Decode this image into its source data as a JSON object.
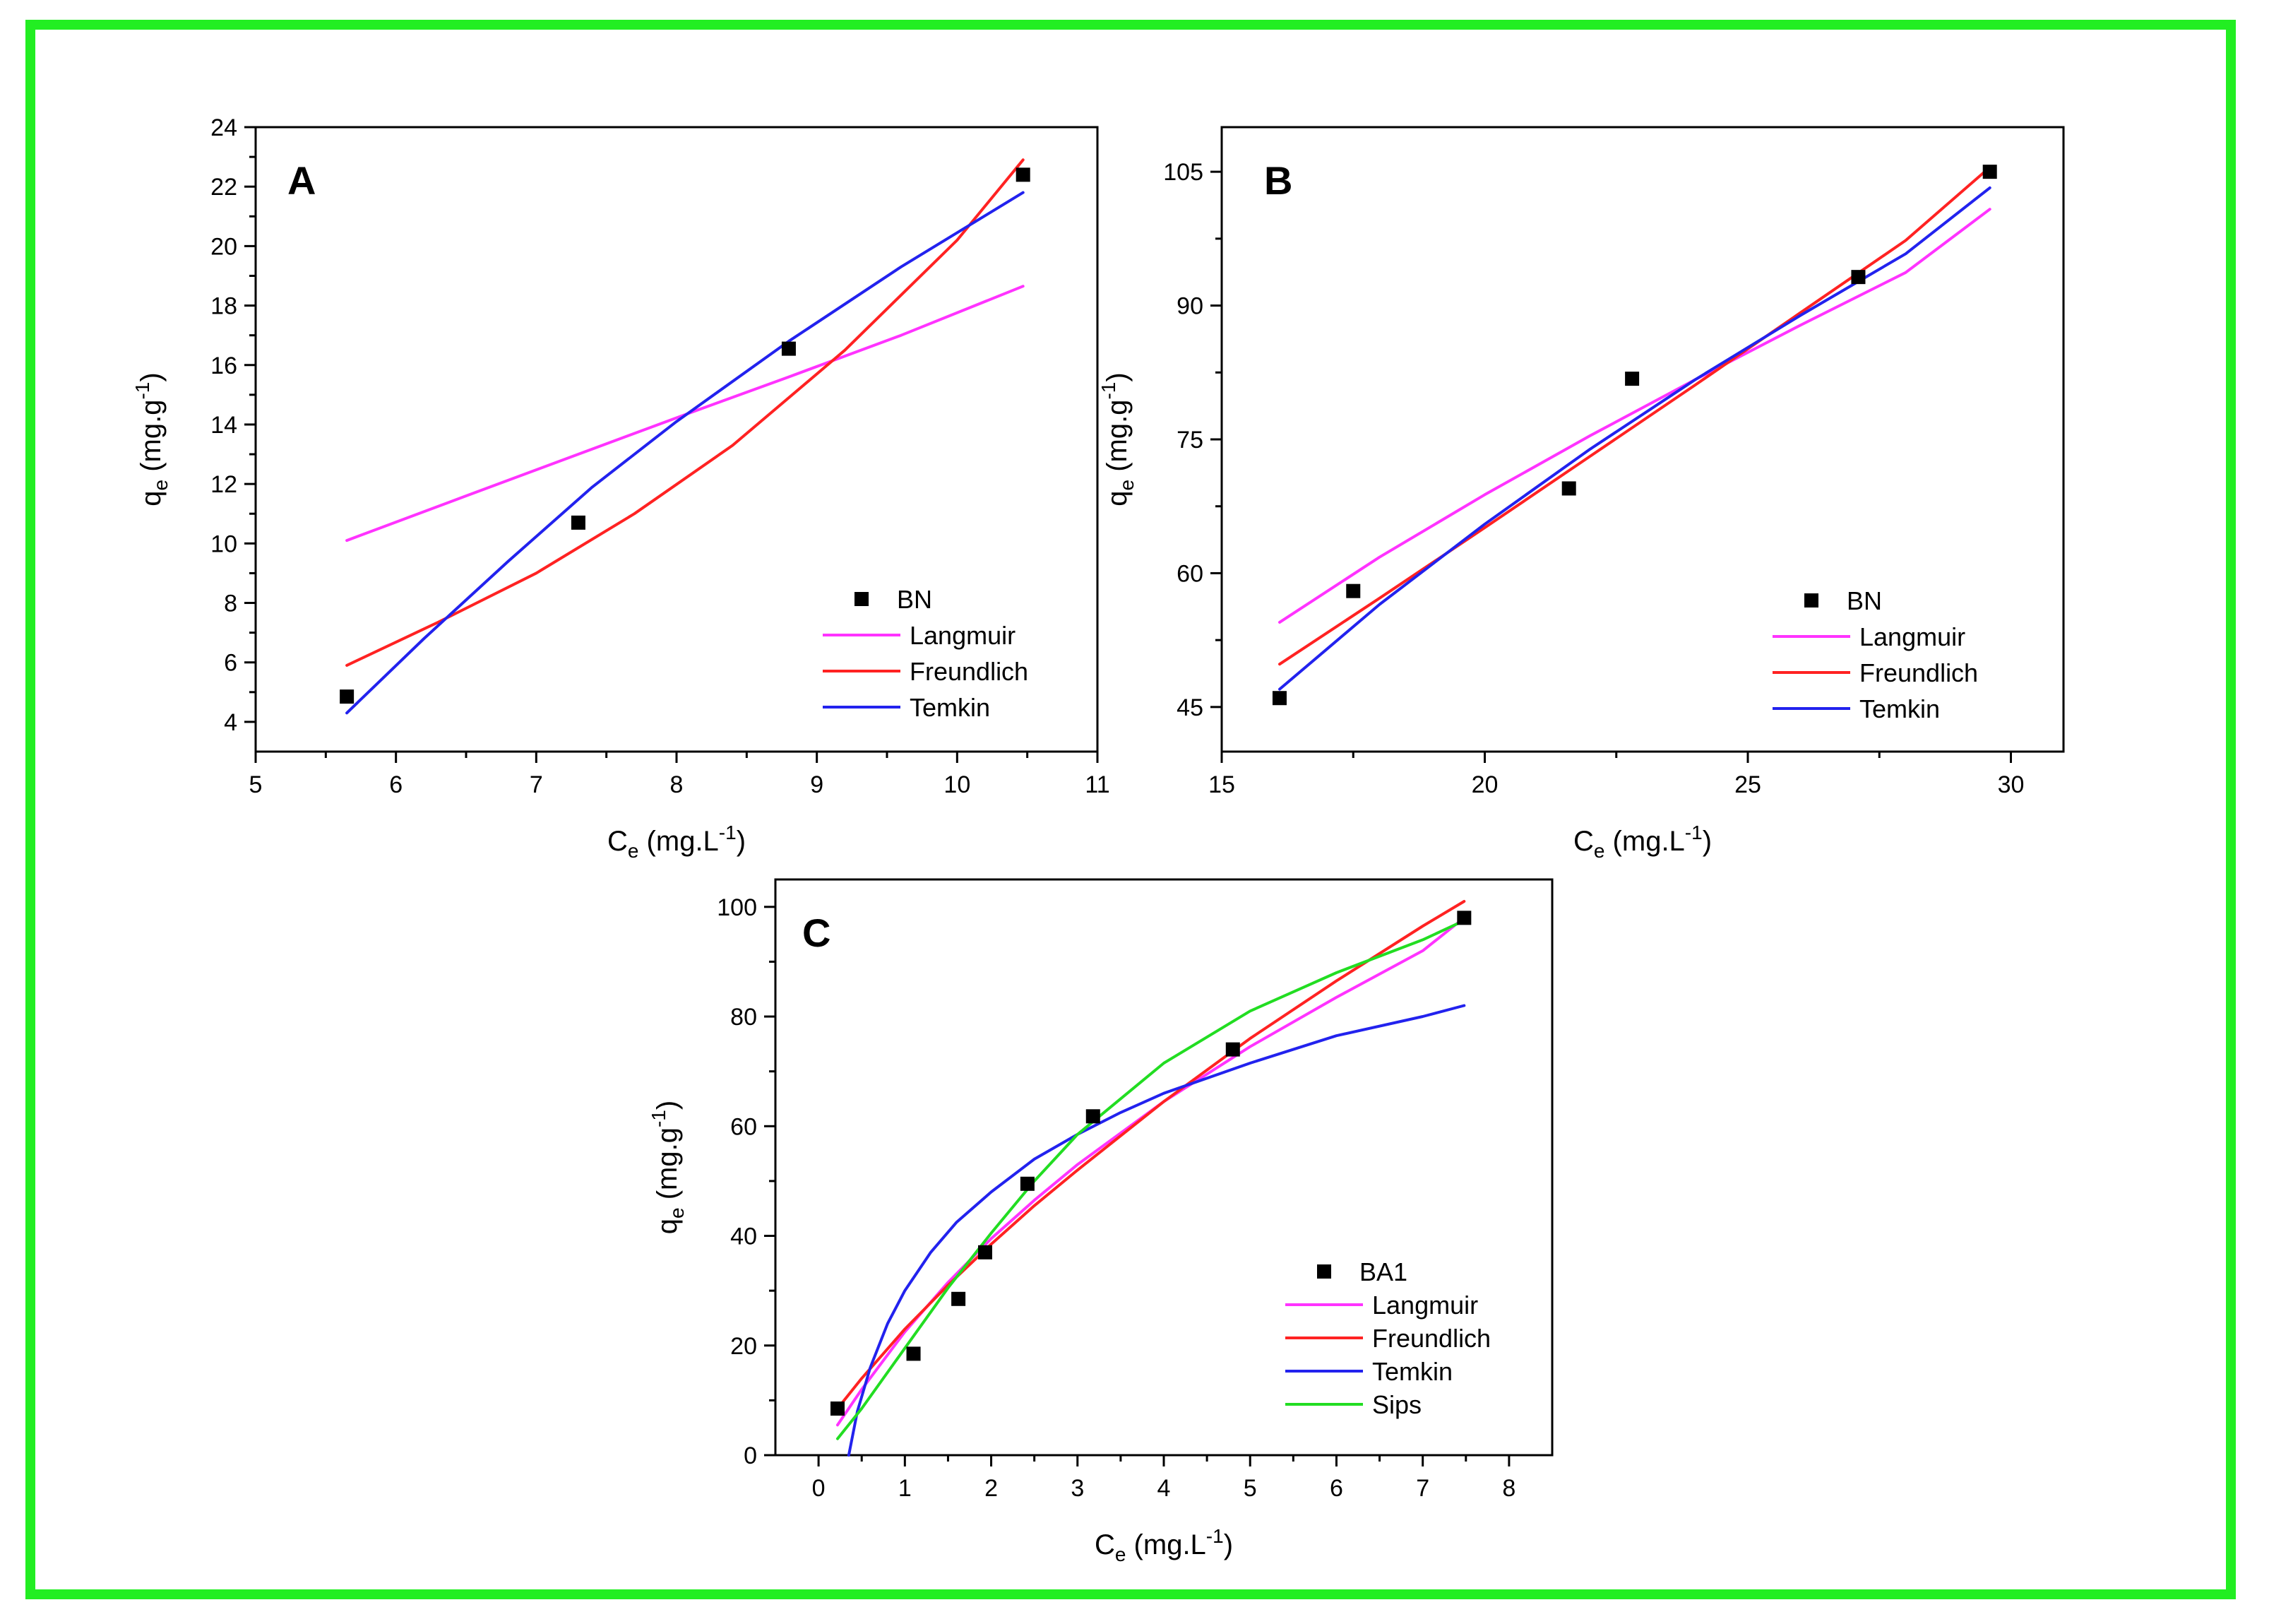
{
  "colors": {
    "border": "#22ee22",
    "data": "#000000",
    "langmuir": "#ff33ff",
    "freundlich": "#ff2222",
    "temkin": "#2222ee",
    "sips": "#22dd22"
  },
  "chart_data": [
    {
      "type": "scatter",
      "panel": "A",
      "xlabel": "Ce (mg.L-1)",
      "ylabel": "qe (mg.g-1)",
      "xlim": [
        5,
        11
      ],
      "ylim": [
        3,
        24
      ],
      "xticks": [
        5,
        6,
        7,
        8,
        9,
        10,
        11
      ],
      "yticks": [
        4,
        6,
        8,
        10,
        12,
        14,
        16,
        18,
        20,
        22,
        24
      ],
      "legend_position": "bottom-right",
      "points": {
        "name": "BN",
        "x": [
          5.65,
          7.3,
          8.8,
          10.47
        ],
        "y": [
          4.85,
          10.7,
          16.55,
          22.4
        ]
      },
      "series": [
        {
          "name": "Langmuir",
          "color_key": "langmuir",
          "x": [
            5.65,
            6.5,
            7.3,
            8.1,
            8.8,
            9.6,
            10.47
          ],
          "y": [
            10.1,
            11.6,
            13.0,
            14.4,
            15.6,
            17.0,
            18.65
          ]
        },
        {
          "name": "Freundlich",
          "color_key": "freundlich",
          "x": [
            5.65,
            6.3,
            7.0,
            7.7,
            8.4,
            9.2,
            10.0,
            10.47
          ],
          "y": [
            5.9,
            7.35,
            9.0,
            11.0,
            13.3,
            16.5,
            20.2,
            22.9
          ]
        },
        {
          "name": "Temkin",
          "color_key": "temkin",
          "x": [
            5.65,
            6.2,
            6.8,
            7.4,
            8.0,
            8.8,
            9.6,
            10.47
          ],
          "y": [
            4.3,
            6.8,
            9.4,
            11.9,
            14.1,
            16.8,
            19.3,
            21.8
          ]
        }
      ]
    },
    {
      "type": "scatter",
      "panel": "B",
      "xlabel": "Ce (mg.L-1)",
      "ylabel": "qe (mg.g-1)",
      "xlim": [
        15,
        31
      ],
      "ylim": [
        40,
        110
      ],
      "xticks": [
        15,
        20,
        25,
        30
      ],
      "yticks": [
        45,
        60,
        75,
        90,
        105
      ],
      "legend_position": "bottom-right",
      "points": {
        "name": "BN",
        "x": [
          16.1,
          17.5,
          21.6,
          22.8,
          27.1,
          29.6
        ],
        "y": [
          46,
          58,
          69.5,
          81.8,
          93.2,
          105
        ]
      },
      "series": [
        {
          "name": "Langmuir",
          "color_key": "langmuir",
          "x": [
            16.1,
            18.0,
            20.0,
            22.0,
            24.0,
            26.0,
            28.0,
            29.6
          ],
          "y": [
            54.5,
            61.8,
            68.8,
            75.4,
            81.7,
            87.8,
            93.7,
            100.8
          ]
        },
        {
          "name": "Freundlich",
          "color_key": "freundlich",
          "x": [
            16.1,
            18.0,
            20.0,
            22.0,
            24.0,
            26.0,
            28.0,
            29.6
          ],
          "y": [
            49.8,
            57.2,
            65.1,
            73.1,
            81.1,
            89.2,
            97.3,
            105.5
          ]
        },
        {
          "name": "Temkin",
          "color_key": "temkin",
          "x": [
            16.1,
            17.0,
            18.0,
            20.0,
            22.0,
            24.0,
            26.0,
            28.0,
            29.6
          ],
          "y": [
            47,
            51.5,
            56.5,
            65.5,
            73.9,
            81.7,
            88.9,
            95.8,
            103.2
          ]
        }
      ]
    },
    {
      "type": "scatter",
      "panel": "C",
      "xlabel": "Ce (mg.L-1)",
      "ylabel": "qe (mg.g-1)",
      "xlim": [
        -0.5,
        8.5
      ],
      "ylim": [
        0,
        105
      ],
      "xticks": [
        0,
        1,
        2,
        3,
        4,
        5,
        6,
        7,
        8
      ],
      "yticks": [
        0,
        20,
        40,
        60,
        80,
        100
      ],
      "legend_position": "bottom-right",
      "points": {
        "name": "BA1",
        "x": [
          0.22,
          1.1,
          1.62,
          1.93,
          2.42,
          3.18,
          4.8,
          7.48
        ],
        "y": [
          8.5,
          18.5,
          28.5,
          37,
          49.5,
          61.8,
          74,
          98
        ]
      },
      "series": [
        {
          "name": "Langmuir",
          "color_key": "langmuir",
          "x": [
            0.22,
            0.5,
            1.0,
            1.5,
            2.0,
            2.5,
            3.0,
            4.0,
            5.0,
            6.0,
            7.0,
            7.48
          ],
          "y": [
            5.5,
            12,
            22.5,
            31.5,
            39.5,
            46.5,
            53,
            64.5,
            74.5,
            83.5,
            92,
            98
          ]
        },
        {
          "name": "Freundlich",
          "color_key": "freundlich",
          "x": [
            0.22,
            0.5,
            1.0,
            1.5,
            2.0,
            2.5,
            3.0,
            4.0,
            5.0,
            6.0,
            7.0,
            7.48
          ],
          "y": [
            8.5,
            14,
            23,
            31,
            38.5,
            45.5,
            52,
            64.5,
            76,
            86.5,
            96.5,
            101
          ]
        },
        {
          "name": "Temkin",
          "color_key": "temkin",
          "x": [
            0.35,
            0.45,
            0.6,
            0.8,
            1.0,
            1.3,
            1.6,
            2.0,
            2.5,
            3.0,
            3.5,
            4.0,
            5.0,
            6.0,
            7.0,
            7.48
          ],
          "y": [
            0,
            8,
            16,
            24,
            30,
            37,
            42.5,
            48,
            54,
            58.5,
            62.5,
            66,
            71.5,
            76.5,
            80,
            82
          ]
        },
        {
          "name": "Sips",
          "color_key": "sips",
          "x": [
            0.22,
            0.5,
            1.0,
            1.5,
            2.0,
            2.5,
            3.0,
            4.0,
            5.0,
            6.0,
            7.0,
            7.48
          ],
          "y": [
            3,
            8.5,
            19.5,
            30.5,
            40.5,
            50,
            58.5,
            71.5,
            81,
            88,
            94,
            97.5
          ]
        }
      ]
    }
  ]
}
